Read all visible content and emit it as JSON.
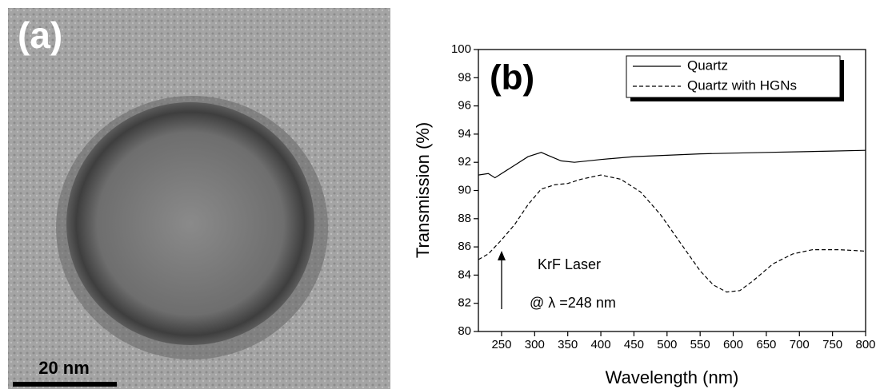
{
  "image_panel": {
    "label": "(a)",
    "scale_bar": "20 nm"
  },
  "chart_data": {
    "type": "line",
    "panel_label": "(b)",
    "x_label": "Wavelength (nm)",
    "y_label": "Transmission (%)",
    "xlim": [
      215,
      800
    ],
    "ylim": [
      80,
      100
    ],
    "xticks": [
      250,
      300,
      350,
      400,
      450,
      500,
      550,
      600,
      650,
      700,
      750,
      800
    ],
    "yticks": [
      80,
      82,
      84,
      86,
      88,
      90,
      92,
      94,
      96,
      98,
      100
    ],
    "legend": "upper right",
    "annotations": [
      "KrF Laser",
      "@ λ =248 nm"
    ],
    "series": [
      {
        "name": "Quartz",
        "color": "#000000",
        "style": "solid",
        "x": [
          215,
          230,
          240,
          250,
          270,
          290,
          310,
          320,
          340,
          360,
          400,
          450,
          500,
          550,
          600,
          650,
          700,
          750,
          800
        ],
        "values": [
          91.1,
          91.2,
          90.9,
          91.2,
          91.8,
          92.4,
          92.7,
          92.5,
          92.1,
          92.0,
          92.2,
          92.4,
          92.5,
          92.6,
          92.65,
          92.7,
          92.75,
          92.8,
          92.85
        ]
      },
      {
        "name": "Quartz with HGNs",
        "color": "#000000",
        "style": "dashed",
        "x": [
          215,
          230,
          250,
          270,
          290,
          310,
          330,
          350,
          370,
          400,
          430,
          460,
          490,
          520,
          550,
          570,
          590,
          610,
          630,
          660,
          690,
          720,
          760,
          800
        ],
        "values": [
          85.1,
          85.5,
          86.5,
          87.6,
          89.0,
          90.1,
          90.4,
          90.5,
          90.8,
          91.1,
          90.8,
          89.9,
          88.3,
          86.3,
          84.3,
          83.3,
          82.8,
          82.9,
          83.6,
          84.8,
          85.5,
          85.8,
          85.8,
          85.7
        ]
      }
    ]
  }
}
